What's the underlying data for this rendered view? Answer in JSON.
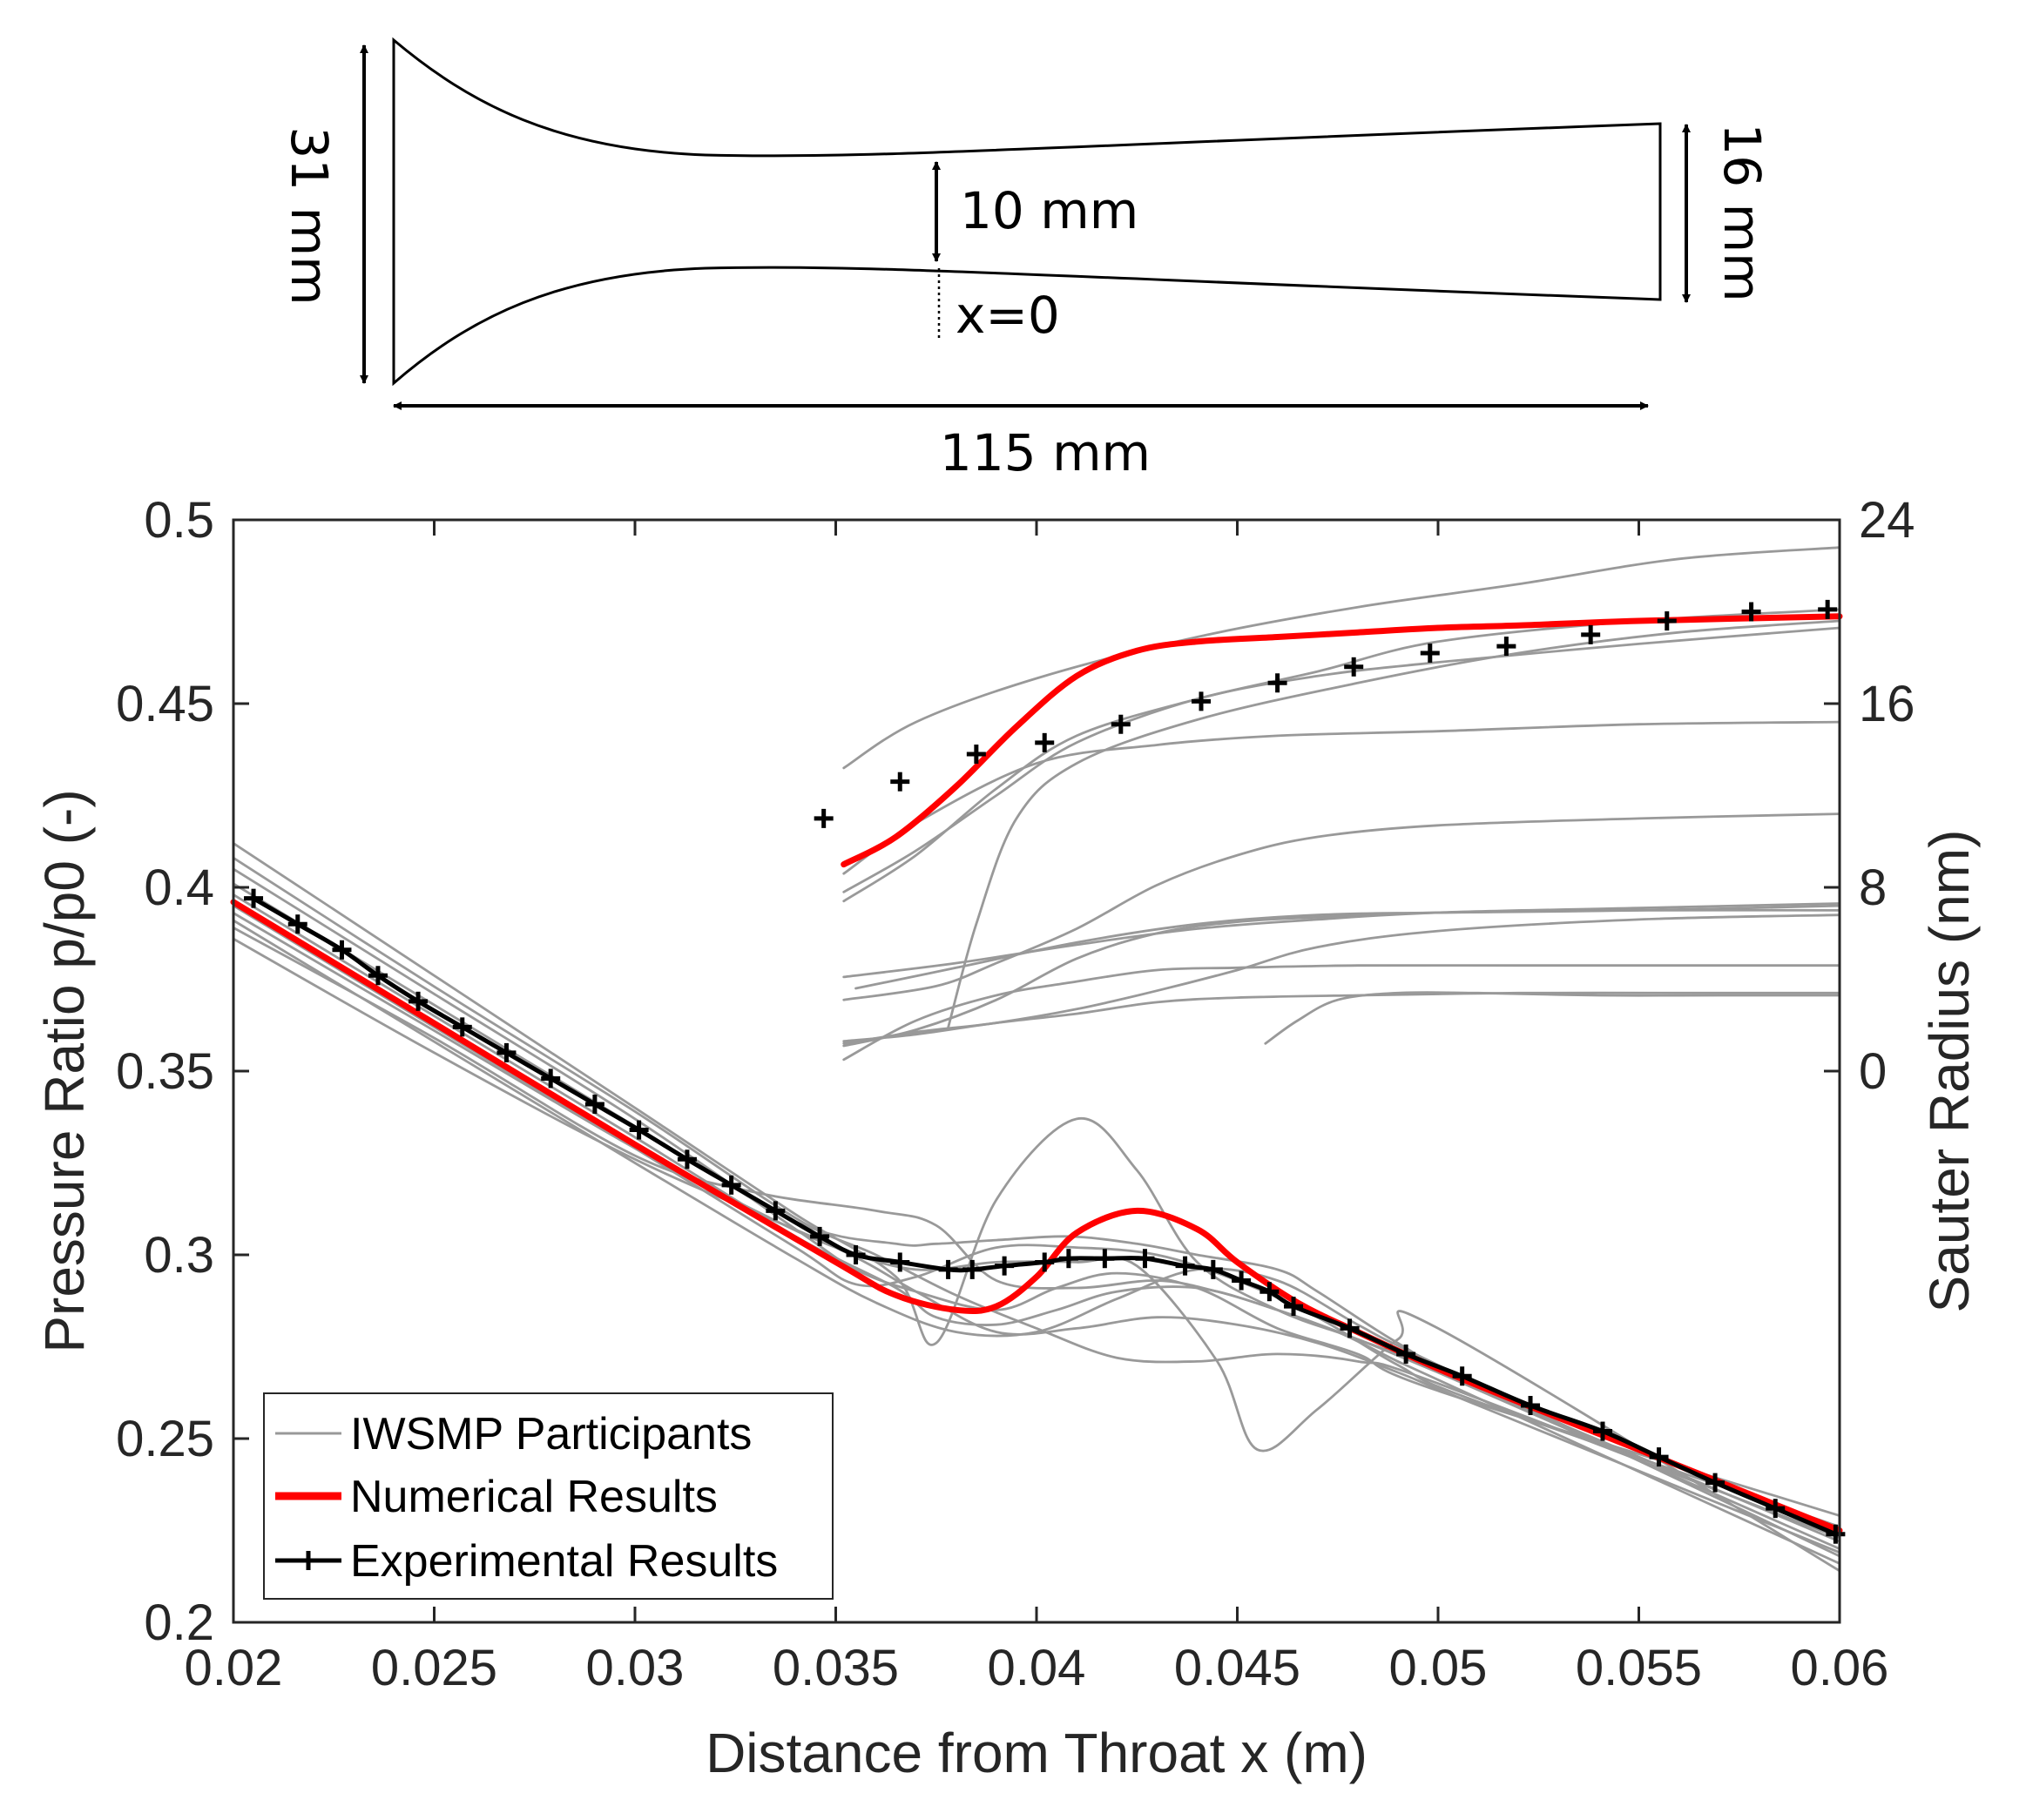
{
  "nozzle_diagram": {
    "inlet_height_label": "31 mm",
    "throat_height_label": "10 mm",
    "outlet_height_label": "16 mm",
    "length_label": "115 mm",
    "throat_position_label": "x=0"
  },
  "chart_data": {
    "type": "line",
    "xlabel": "Distance from Throat x (m)",
    "ylabel": "Pressure Ratio p/p0 (-)",
    "y2label": "Sauter Radius (nm)",
    "xlim": [
      0.02,
      0.06
    ],
    "ylim": [
      0.2,
      0.5
    ],
    "y2lim": [
      -24,
      24
    ],
    "x_ticks": [
      "0.02",
      "0.025",
      "0.03",
      "0.035",
      "0.04",
      "0.045",
      "0.05",
      "0.055",
      "0.06"
    ],
    "y_ticks": [
      "0.2",
      "0.25",
      "0.3",
      "0.35",
      "0.4",
      "0.45",
      "0.5"
    ],
    "y2_ticks": [
      "0",
      "8",
      "16",
      "24"
    ],
    "grid": false,
    "legend": {
      "position": "bottom-left",
      "entries": [
        "IWSMP Participants",
        "Numerical Results",
        "Experimental Results"
      ]
    },
    "colors": {
      "participants": "#999999",
      "numerical": "#ff0000",
      "experimental": "#000000"
    },
    "pressure": {
      "numerical": {
        "x": [
          0.02,
          0.025,
          0.03,
          0.035,
          0.0365,
          0.038,
          0.039,
          0.04,
          0.041,
          0.0425,
          0.044,
          0.045,
          0.0465,
          0.048,
          0.05,
          0.052,
          0.055,
          0.06
        ],
        "y": [
          0.396,
          0.363,
          0.33,
          0.298,
          0.289,
          0.285,
          0.286,
          0.294,
          0.306,
          0.312,
          0.307,
          0.298,
          0.287,
          0.279,
          0.269,
          0.26,
          0.247,
          0.225
        ]
      },
      "experimental": {
        "x": [
          0.0205,
          0.0216,
          0.0227,
          0.0236,
          0.0246,
          0.0257,
          0.0268,
          0.0279,
          0.029,
          0.0301,
          0.0313,
          0.0324,
          0.0335,
          0.0346,
          0.0355,
          0.0366,
          0.0378,
          0.0384,
          0.0392,
          0.0402,
          0.0408,
          0.0417,
          0.0427,
          0.0437,
          0.0444,
          0.0451,
          0.0458,
          0.0464,
          0.0478,
          0.0492,
          0.0506,
          0.0523,
          0.0541,
          0.0555,
          0.0569,
          0.0584,
          0.0599
        ],
        "y": [
          0.397,
          0.39,
          0.383,
          0.376,
          0.369,
          0.362,
          0.355,
          0.348,
          0.341,
          0.334,
          0.326,
          0.319,
          0.312,
          0.305,
          0.3,
          0.298,
          0.296,
          0.296,
          0.297,
          0.298,
          0.299,
          0.299,
          0.299,
          0.297,
          0.296,
          0.293,
          0.29,
          0.286,
          0.28,
          0.273,
          0.267,
          0.259,
          0.252,
          0.245,
          0.238,
          0.231,
          0.224
        ]
      },
      "participants": [
        {
          "x": [
            0.02,
            0.025,
            0.03,
            0.034,
            0.0365,
            0.0375,
            0.039,
            0.0408,
            0.0425,
            0.044,
            0.046,
            0.047,
            0.049,
            0.051,
            0.06
          ],
          "y": [
            0.401,
            0.368,
            0.335,
            0.309,
            0.303,
            0.303,
            0.304,
            0.305,
            0.303,
            0.3,
            0.296,
            0.29,
            0.276,
            0.265,
            0.224
          ]
        },
        {
          "x": [
            0.02,
            0.025,
            0.03,
            0.034,
            0.0365,
            0.0375,
            0.039,
            0.0405,
            0.042,
            0.044,
            0.046,
            0.048,
            0.05,
            0.06
          ],
          "y": [
            0.398,
            0.365,
            0.332,
            0.305,
            0.291,
            0.283,
            0.281,
            0.285,
            0.29,
            0.291,
            0.285,
            0.277,
            0.268,
            0.22
          ]
        },
        {
          "x": [
            0.02,
            0.025,
            0.03,
            0.034,
            0.0365,
            0.0375,
            0.039,
            0.041,
            0.0425,
            0.044,
            0.046,
            0.048,
            0.05,
            0.06
          ],
          "y": [
            0.412,
            0.376,
            0.34,
            0.311,
            0.294,
            0.276,
            0.315,
            0.337,
            0.323,
            0.298,
            0.285,
            0.277,
            0.268,
            0.222
          ]
        },
        {
          "x": [
            0.02,
            0.025,
            0.03,
            0.033,
            0.036,
            0.0375,
            0.039,
            0.041,
            0.043,
            0.0445,
            0.046,
            0.0475,
            0.049,
            0.05,
            0.06
          ],
          "y": [
            0.389,
            0.359,
            0.327,
            0.317,
            0.312,
            0.308,
            0.293,
            0.291,
            0.293,
            0.29,
            0.285,
            0.279,
            0.271,
            0.266,
            0.216
          ]
        },
        {
          "x": [
            0.02,
            0.025,
            0.03,
            0.033,
            0.035,
            0.037,
            0.039,
            0.041,
            0.0425,
            0.0445,
            0.0455,
            0.047,
            0.049,
            0.05,
            0.06
          ],
          "y": [
            0.393,
            0.361,
            0.329,
            0.312,
            0.302,
            0.296,
            0.298,
            0.298,
            0.297,
            0.271,
            0.247,
            0.258,
            0.277,
            0.28,
            0.214
          ]
        },
        {
          "x": [
            0.02,
            0.025,
            0.03,
            0.034,
            0.0355,
            0.037,
            0.039,
            0.0405,
            0.042,
            0.044,
            0.046,
            0.048,
            0.05,
            0.06
          ],
          "y": [
            0.405,
            0.371,
            0.337,
            0.307,
            0.296,
            0.29,
            0.285,
            0.291,
            0.295,
            0.291,
            0.28,
            0.273,
            0.263,
            0.229
          ]
        },
        {
          "x": [
            0.02,
            0.025,
            0.03,
            0.035,
            0.037,
            0.039,
            0.041,
            0.043,
            0.045,
            0.047,
            0.049,
            0.051,
            0.06
          ],
          "y": [
            0.386,
            0.355,
            0.326,
            0.302,
            0.29,
            0.279,
            0.28,
            0.283,
            0.281,
            0.276,
            0.268,
            0.259,
            0.219
          ]
        },
        {
          "x": [
            0.02,
            0.025,
            0.03,
            0.034,
            0.0355,
            0.037,
            0.039,
            0.041,
            0.043,
            0.045,
            0.047,
            0.049,
            0.051,
            0.06
          ],
          "y": [
            0.395,
            0.362,
            0.329,
            0.302,
            0.292,
            0.294,
            0.302,
            0.302,
            0.3,
            0.293,
            0.283,
            0.27,
            0.26,
            0.226
          ]
        },
        {
          "x": [
            0.02,
            0.025,
            0.03,
            0.034,
            0.036,
            0.038,
            0.04,
            0.042,
            0.044,
            0.046,
            0.048,
            0.05,
            0.06
          ],
          "y": [
            0.391,
            0.358,
            0.325,
            0.299,
            0.287,
            0.279,
            0.279,
            0.288,
            0.296,
            0.293,
            0.281,
            0.27,
            0.218
          ]
        },
        {
          "x": [
            0.02,
            0.025,
            0.03,
            0.034,
            0.036,
            0.038,
            0.04,
            0.042,
            0.044,
            0.046,
            0.048,
            0.05,
            0.06
          ],
          "y": [
            0.408,
            0.373,
            0.339,
            0.31,
            0.3,
            0.289,
            0.28,
            0.272,
            0.271,
            0.273,
            0.271,
            0.265,
            0.223
          ]
        }
      ]
    },
    "sauter_radius": {
      "numerical": {
        "x": [
          0.0352,
          0.0365,
          0.038,
          0.0395,
          0.041,
          0.0425,
          0.044,
          0.046,
          0.048,
          0.05,
          0.052,
          0.055,
          0.06
        ],
        "y": [
          9.0,
          10.2,
          12.4,
          15.0,
          17.2,
          18.3,
          18.7,
          18.9,
          19.1,
          19.3,
          19.4,
          19.6,
          19.8
        ]
      },
      "experimental": {
        "x": [
          0.0347,
          0.0366,
          0.0385,
          0.0402,
          0.0421,
          0.0441,
          0.046,
          0.0479,
          0.0498,
          0.0517,
          0.0538,
          0.0557,
          0.0578,
          0.0597
        ],
        "y": [
          11.0,
          12.6,
          13.8,
          14.3,
          15.1,
          16.1,
          16.9,
          17.6,
          18.2,
          18.5,
          19.0,
          19.6,
          20.0,
          20.1
        ]
      },
      "participants": [
        {
          "x": [
            0.0352,
            0.037,
            0.04,
            0.044,
            0.048,
            0.052,
            0.056,
            0.06
          ],
          "y": [
            13.2,
            15.2,
            17.1,
            18.9,
            20.2,
            21.2,
            22.3,
            22.8
          ]
        },
        {
          "x": [
            0.0352,
            0.037,
            0.039,
            0.041,
            0.044,
            0.047,
            0.05,
            0.055,
            0.06
          ],
          "y": [
            7.8,
            9.6,
            12.0,
            14.3,
            16.2,
            17.2,
            17.8,
            18.6,
            19.3
          ]
        },
        {
          "x": [
            0.0352,
            0.037,
            0.039,
            0.041,
            0.044,
            0.047,
            0.05,
            0.055,
            0.06
          ],
          "y": [
            7.4,
            9.4,
            12.3,
            14.6,
            16.2,
            17.4,
            18.7,
            19.6,
            20.1
          ]
        },
        {
          "x": [
            0.0352,
            0.037,
            0.04,
            0.043,
            0.046,
            0.05,
            0.055,
            0.06
          ],
          "y": [
            8.6,
            10.8,
            13.4,
            14.2,
            14.6,
            14.8,
            15.1,
            15.2
          ]
        },
        {
          "x": [
            0.0378,
            0.0385,
            0.0395,
            0.041,
            0.044,
            0.048,
            0.052,
            0.056,
            0.06
          ],
          "y": [
            1.9,
            6.4,
            11.0,
            13.4,
            15.3,
            16.9,
            18.2,
            19.1,
            19.6
          ]
        },
        {
          "x": [
            0.0352,
            0.038,
            0.041,
            0.044,
            0.047,
            0.05,
            0.055,
            0.06
          ],
          "y": [
            4.1,
            4.7,
            5.5,
            6.2,
            6.6,
            6.9,
            7.1,
            7.3
          ]
        },
        {
          "x": [
            0.0355,
            0.038,
            0.041,
            0.044,
            0.047,
            0.05,
            0.055,
            0.06
          ],
          "y": [
            3.6,
            4.5,
            5.6,
            6.4,
            6.8,
            6.9,
            7.0,
            7.2
          ]
        },
        {
          "x": [
            0.0352,
            0.037,
            0.039,
            0.041,
            0.043,
            0.045,
            0.047,
            0.05,
            0.055,
            0.06
          ],
          "y": [
            1.1,
            1.8,
            3.1,
            4.9,
            6.0,
            6.5,
            6.7,
            6.9,
            7.0,
            7.0
          ]
        },
        {
          "x": [
            0.0352,
            0.037,
            0.039,
            0.041,
            0.043,
            0.045,
            0.047,
            0.05,
            0.055,
            0.06
          ],
          "y": [
            1.2,
            1.7,
            2.1,
            2.7,
            3.5,
            4.4,
            5.4,
            6.1,
            6.6,
            6.8
          ]
        },
        {
          "x": [
            0.0352,
            0.0375,
            0.039,
            0.041,
            0.043,
            0.045,
            0.047,
            0.05,
            0.055,
            0.06
          ],
          "y": [
            3.1,
            3.7,
            4.7,
            6.2,
            8.1,
            9.4,
            10.2,
            10.7,
            11.0,
            11.2
          ]
        },
        {
          "x": [
            0.0352,
            0.037,
            0.039,
            0.041,
            0.043,
            0.045,
            0.048,
            0.052,
            0.056,
            0.06
          ],
          "y": [
            0.5,
            2.2,
            3.3,
            3.9,
            4.4,
            4.5,
            4.6,
            4.6,
            4.6,
            4.6
          ]
        },
        {
          "x": [
            0.0352,
            0.037,
            0.039,
            0.041,
            0.043,
            0.045,
            0.048,
            0.052,
            0.056,
            0.06
          ],
          "y": [
            1.3,
            1.6,
            2.1,
            2.5,
            3.0,
            3.2,
            3.3,
            3.4,
            3.4,
            3.4
          ]
        },
        {
          "x": [
            0.0457,
            0.0465,
            0.0475,
            0.049,
            0.051,
            0.054,
            0.057,
            0.06
          ],
          "y": [
            1.2,
            2.2,
            3.1,
            3.4,
            3.4,
            3.3,
            3.3,
            3.3
          ]
        }
      ]
    }
  }
}
